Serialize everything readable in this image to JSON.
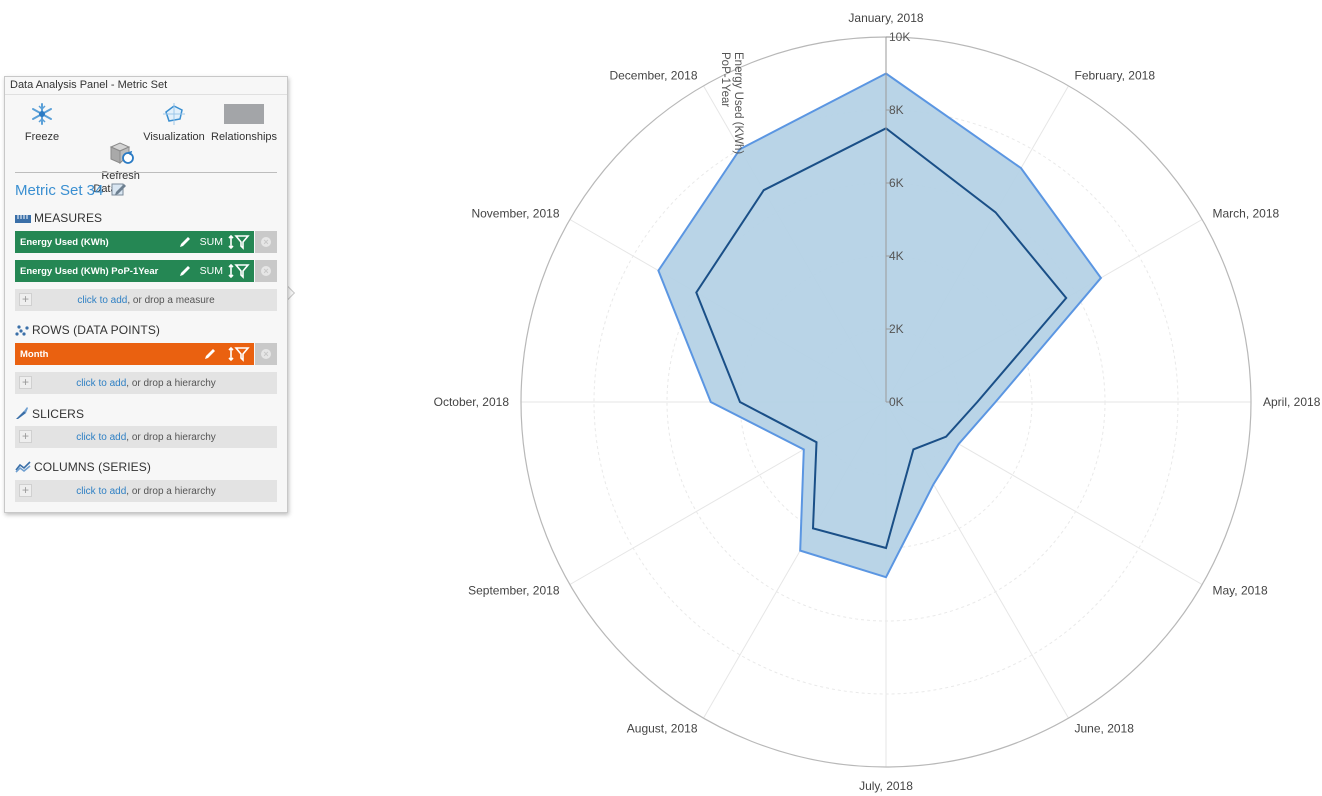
{
  "panel": {
    "title": "Data Analysis Panel - Metric Set",
    "toolbar": [
      {
        "label": "Freeze",
        "icon": "snowflake-icon"
      },
      {
        "label": "Refresh\nData",
        "icon": "refresh-data-icon"
      },
      {
        "label": "Visualization",
        "icon": "radar-visualization-icon"
      },
      {
        "label": "Relationships",
        "icon": "relationships-icon"
      }
    ],
    "metric_set_title": "Metric Set 34",
    "measures_header": "MEASURES",
    "measures": [
      {
        "label": "Energy Used (KWh)",
        "aggregation": "SUM"
      },
      {
        "label": "Energy Used (KWh) PoP-1Year",
        "aggregation": "SUM"
      }
    ],
    "rows_header": "ROWS (DATA POINTS)",
    "rows": [
      {
        "label": "Month"
      }
    ],
    "slicers_header": "SLICERS",
    "columns_header": "COLUMNS (SERIES)",
    "drop_link": "click to add",
    "drop_measure_suffix": ", or drop a measure",
    "drop_hierarchy_suffix": ", or drop a hierarchy",
    "colors": {
      "measure_chip": "#258754",
      "row_chip": "#ea6110",
      "link": "#2f80c4",
      "title": "#3a8fd1"
    }
  },
  "chart_data": {
    "type": "radar",
    "categories": [
      "January, 2018",
      "February, 2018",
      "March, 2018",
      "April, 2018",
      "May, 2018",
      "June, 2018",
      "July, 2018",
      "August, 2018",
      "September, 2018",
      "October, 2018",
      "November, 2018",
      "December, 2018"
    ],
    "radial_axis_label": "Energy Used (KWh)\nPoP-1Year",
    "radial_ticks": [
      "0K",
      "2K",
      "4K",
      "6K",
      "8K",
      "10K"
    ],
    "rlim": [
      0,
      10000
    ],
    "grid": true,
    "series": [
      {
        "name": "Energy Used (KWh) PoP-1Year",
        "style": "area",
        "color": "#5b96e2",
        "fill": "#b5d2e6",
        "values": [
          9000,
          7400,
          6800,
          3000,
          2300,
          2600,
          4800,
          4700,
          2600,
          4800,
          7200,
          8000
        ]
      },
      {
        "name": "Energy Used (KWh)",
        "style": "line",
        "color": "#1a4f87",
        "values": [
          7500,
          6000,
          5700,
          2500,
          1900,
          1500,
          4000,
          4000,
          2200,
          4000,
          6000,
          6700
        ]
      }
    ]
  }
}
